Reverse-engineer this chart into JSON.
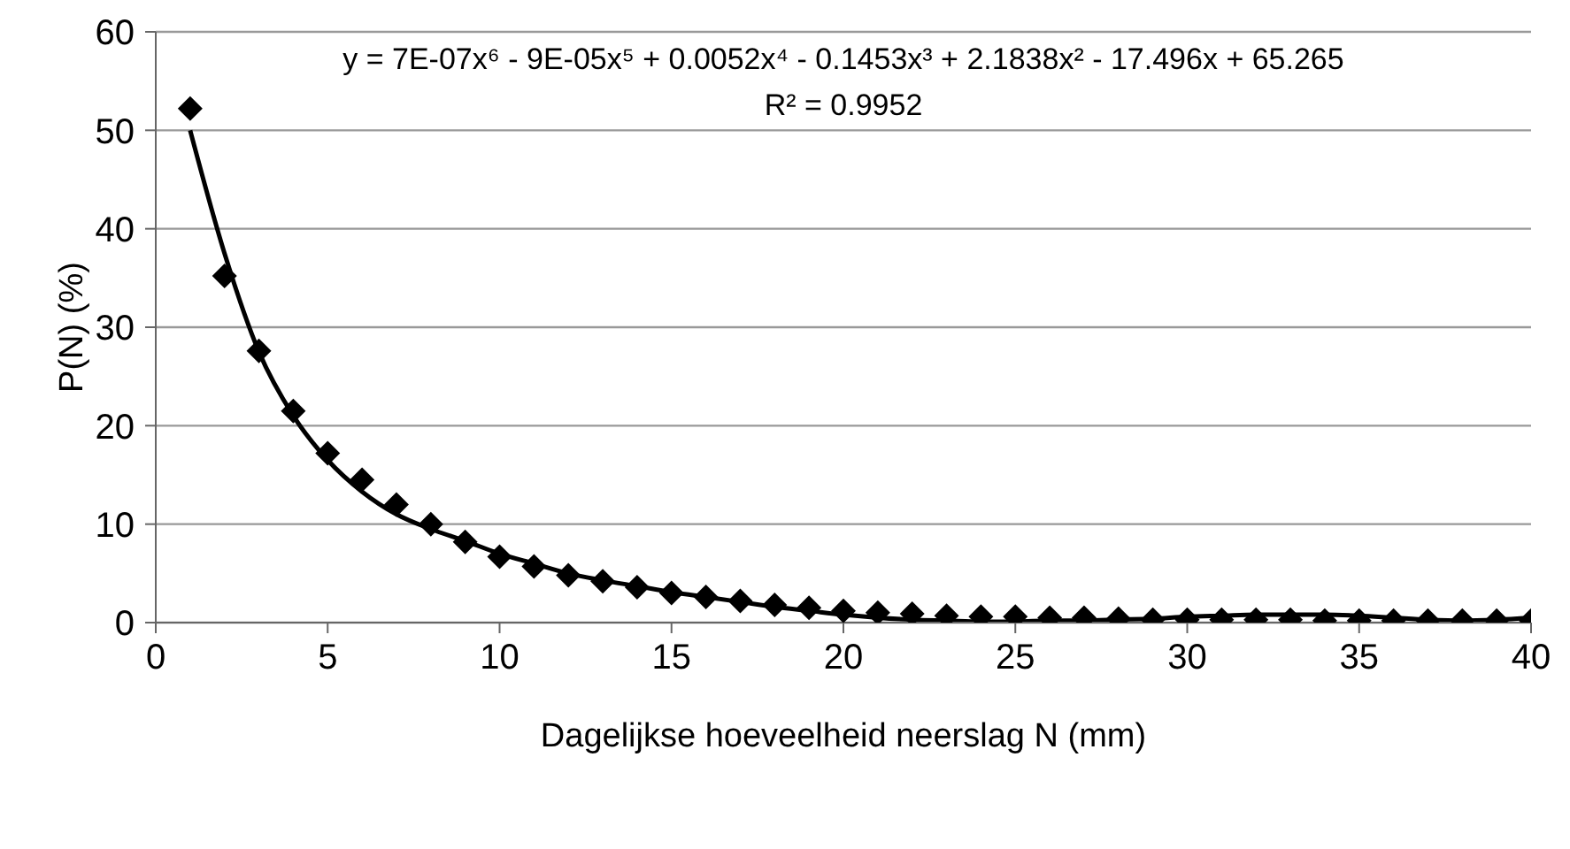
{
  "chart_data": {
    "type": "scatter",
    "xlabel": "Dagelijkse hoeveelheid neerslag N (mm)",
    "ylabel": "P(N) (%)",
    "x": [
      1,
      2,
      3,
      4,
      5,
      6,
      7,
      8,
      9,
      10,
      11,
      12,
      13,
      14,
      15,
      16,
      17,
      18,
      19,
      20,
      21,
      22,
      23,
      24,
      25,
      26,
      27,
      28,
      29,
      30,
      31,
      32,
      33,
      34,
      35,
      36,
      37,
      38,
      39,
      40
    ],
    "series": [
      {
        "color": "#000000",
        "marker": "diamond",
        "values": [
          52.2,
          35.2,
          27.6,
          21.5,
          17.2,
          14.5,
          12.0,
          10.0,
          8.2,
          6.7,
          5.7,
          4.8,
          4.2,
          3.6,
          3.0,
          2.6,
          2.2,
          1.8,
          1.5,
          1.2,
          1.0,
          0.9,
          0.7,
          0.6,
          0.6,
          0.5,
          0.5,
          0.4,
          0.3,
          0.3,
          0.3,
          0.3,
          0.3,
          0.2,
          0.2,
          0.2,
          0.2,
          0.2,
          0.2,
          0.2
        ]
      },
      {
        "type": "line",
        "color": "#000000",
        "marker": "none",
        "line_style": "solid",
        "values": [
          50,
          37.5,
          27.5,
          21,
          16.5,
          13.3,
          11,
          9.5,
          8.3,
          7,
          6,
          5,
          4.3,
          3.7,
          3.1,
          2.6,
          2.1,
          1.6,
          1.2,
          0.8,
          0.5,
          0.3,
          0.2,
          0.1,
          0.1,
          0.2,
          0.2,
          0.3,
          0.4,
          0.6,
          0.7,
          0.8,
          0.8,
          0.8,
          0.7,
          0.5,
          0.3,
          0.2,
          0.3,
          0.5
        ]
      }
    ],
    "xlim": [
      0,
      40
    ],
    "xticks": [
      0,
      5,
      10,
      15,
      20,
      25,
      30,
      35,
      40
    ],
    "ylim": [
      0,
      60
    ],
    "yticks": [
      0,
      10,
      20,
      30,
      40,
      50,
      60
    ],
    "grid": "y",
    "annotations": [
      {
        "text": "y = 7E-07x⁶ - 9E-05x⁵ + 0.0052x⁴ - 0.1453x³ + 2.1838x² - 17.496x + 65.265"
      },
      {
        "text": "R² = 0.9952"
      }
    ]
  }
}
